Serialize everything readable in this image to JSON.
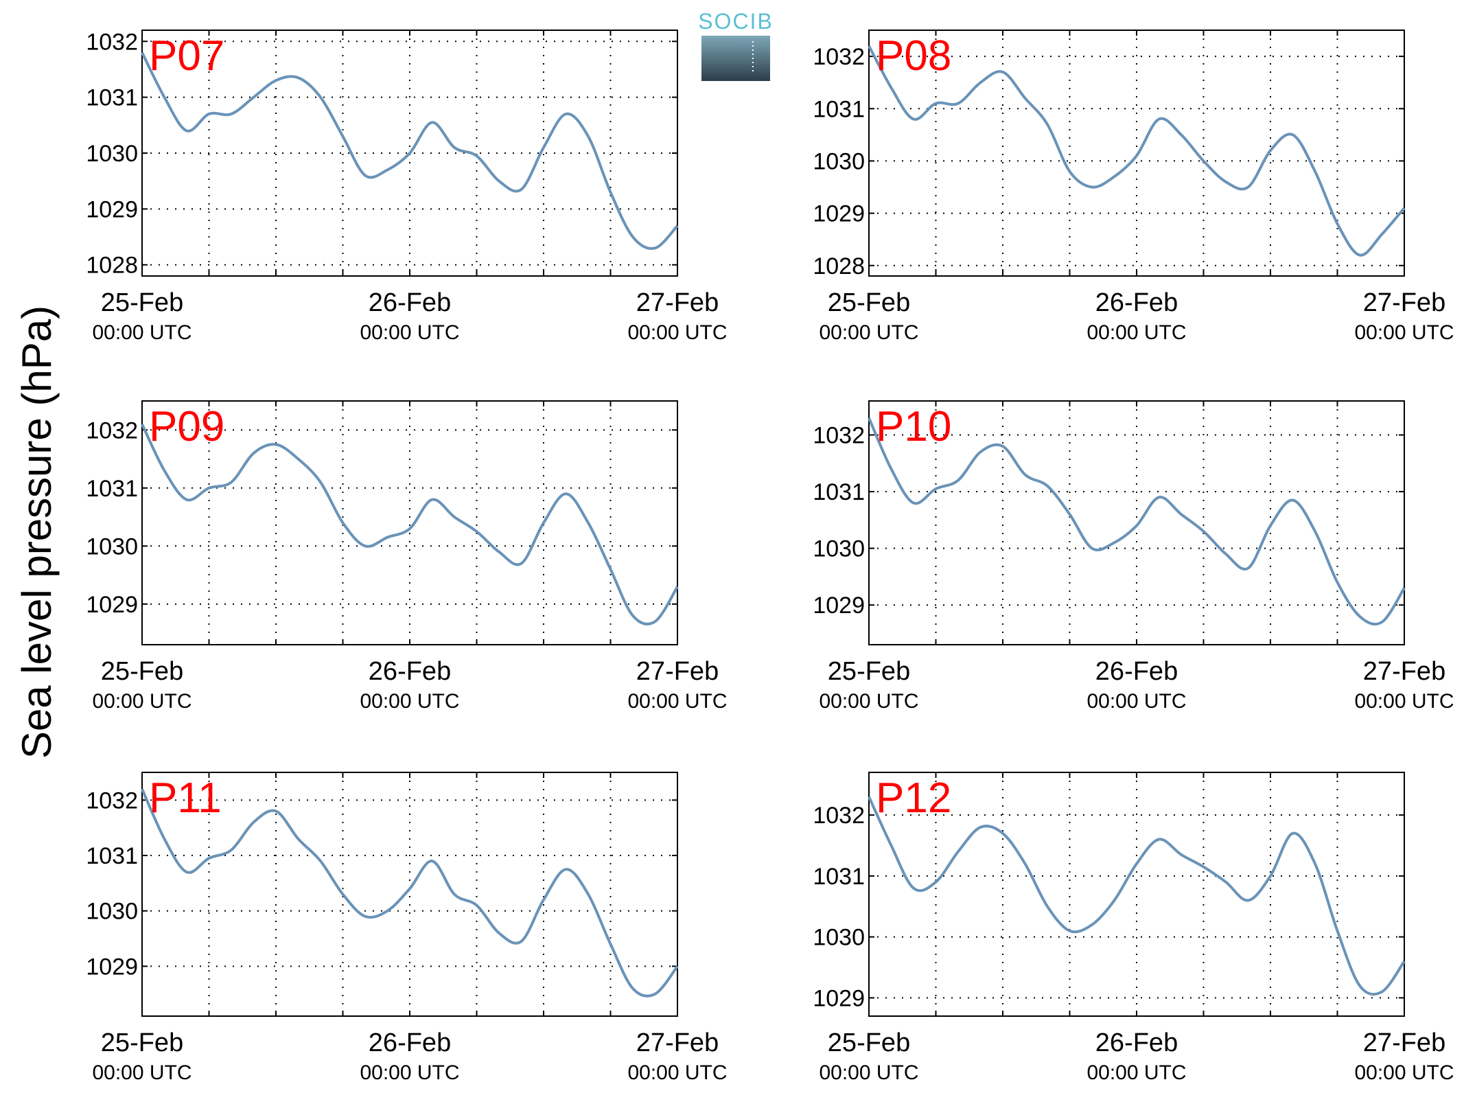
{
  "logo": {
    "text": "SOCIB",
    "text_color": "#5bbfd3",
    "gradient_top": "#7ea7b7",
    "gradient_bottom": "#2c3e4a"
  },
  "colors": {
    "line": "#6a93b8",
    "panel_label": "#ff0000",
    "grid": "#000000"
  },
  "chart_data": [
    {
      "type": "line",
      "label": "P07",
      "ylim": [
        1027.8,
        1032.2
      ],
      "yticks": [
        1028,
        1029,
        1030,
        1031,
        1032
      ],
      "xticks": [
        {
          "date": "25-Feb",
          "time": "00:00 UTC"
        },
        {
          "date": "26-Feb",
          "time": "00:00 UTC"
        },
        {
          "date": "27-Feb",
          "time": "00:00 UTC"
        }
      ],
      "x_hours": [
        0,
        2,
        4,
        6,
        8,
        10,
        12,
        14,
        16,
        18,
        20,
        22,
        24,
        26,
        28,
        30,
        32,
        34,
        36,
        38,
        40,
        42,
        44,
        46,
        48
      ],
      "y": [
        1031.8,
        1031.0,
        1030.4,
        1030.7,
        1030.7,
        1031.0,
        1031.3,
        1031.35,
        1031.0,
        1030.3,
        1029.6,
        1029.7,
        1030.0,
        1030.55,
        1030.1,
        1029.95,
        1029.5,
        1029.35,
        1030.1,
        1030.7,
        1030.3,
        1029.3,
        1028.5,
        1028.3,
        1028.7
      ]
    },
    {
      "type": "line",
      "label": "P08",
      "ylim": [
        1027.8,
        1032.5
      ],
      "yticks": [
        1028,
        1029,
        1030,
        1031,
        1032
      ],
      "xticks": [
        {
          "date": "25-Feb",
          "time": "00:00 UTC"
        },
        {
          "date": "26-Feb",
          "time": "00:00 UTC"
        },
        {
          "date": "27-Feb",
          "time": "00:00 UTC"
        }
      ],
      "x_hours": [
        0,
        2,
        4,
        6,
        8,
        10,
        12,
        14,
        16,
        18,
        20,
        22,
        24,
        26,
        28,
        30,
        32,
        34,
        36,
        38,
        40,
        42,
        44,
        46,
        48
      ],
      "y": [
        1032.2,
        1031.4,
        1030.8,
        1031.1,
        1031.1,
        1031.5,
        1031.7,
        1031.2,
        1030.7,
        1029.8,
        1029.5,
        1029.7,
        1030.1,
        1030.8,
        1030.5,
        1030.0,
        1029.6,
        1029.5,
        1030.2,
        1030.5,
        1029.8,
        1028.8,
        1028.2,
        1028.6,
        1029.1
      ]
    },
    {
      "type": "line",
      "label": "P09",
      "ylim": [
        1028.3,
        1032.5
      ],
      "yticks": [
        1029,
        1030,
        1031,
        1032
      ],
      "xticks": [
        {
          "date": "25-Feb",
          "time": "00:00 UTC"
        },
        {
          "date": "26-Feb",
          "time": "00:00 UTC"
        },
        {
          "date": "27-Feb",
          "time": "00:00 UTC"
        }
      ],
      "x_hours": [
        0,
        2,
        4,
        6,
        8,
        10,
        12,
        14,
        16,
        18,
        20,
        22,
        24,
        26,
        28,
        30,
        32,
        34,
        36,
        38,
        40,
        42,
        44,
        46,
        48
      ],
      "y": [
        1032.1,
        1031.3,
        1030.8,
        1031.0,
        1031.1,
        1031.6,
        1031.75,
        1031.5,
        1031.1,
        1030.4,
        1030.0,
        1030.15,
        1030.3,
        1030.8,
        1030.5,
        1030.25,
        1029.9,
        1029.7,
        1030.4,
        1030.9,
        1030.4,
        1029.6,
        1028.8,
        1028.7,
        1029.3
      ]
    },
    {
      "type": "line",
      "label": "P10",
      "ylim": [
        1028.3,
        1032.6
      ],
      "yticks": [
        1029,
        1030,
        1031,
        1032
      ],
      "xticks": [
        {
          "date": "25-Feb",
          "time": "00:00 UTC"
        },
        {
          "date": "26-Feb",
          "time": "00:00 UTC"
        },
        {
          "date": "27-Feb",
          "time": "00:00 UTC"
        }
      ],
      "x_hours": [
        0,
        2,
        4,
        6,
        8,
        10,
        12,
        14,
        16,
        18,
        20,
        22,
        24,
        26,
        28,
        30,
        32,
        34,
        36,
        38,
        40,
        42,
        44,
        46,
        48
      ],
      "y": [
        1032.3,
        1031.4,
        1030.8,
        1031.05,
        1031.2,
        1031.7,
        1031.8,
        1031.3,
        1031.1,
        1030.6,
        1030.0,
        1030.1,
        1030.4,
        1030.9,
        1030.6,
        1030.3,
        1029.9,
        1029.65,
        1030.4,
        1030.85,
        1030.3,
        1029.4,
        1028.8,
        1028.7,
        1029.3
      ]
    },
    {
      "type": "line",
      "label": "P11",
      "ylim": [
        1028.1,
        1032.5
      ],
      "yticks": [
        1029,
        1030,
        1031,
        1032
      ],
      "xticks": [
        {
          "date": "25-Feb",
          "time": "00:00 UTC"
        },
        {
          "date": "26-Feb",
          "time": "00:00 UTC"
        },
        {
          "date": "27-Feb",
          "time": "00:00 UTC"
        }
      ],
      "x_hours": [
        0,
        2,
        4,
        6,
        8,
        10,
        12,
        14,
        16,
        18,
        20,
        22,
        24,
        26,
        28,
        30,
        32,
        34,
        36,
        38,
        40,
        42,
        44,
        46,
        48
      ],
      "y": [
        1032.2,
        1031.3,
        1030.7,
        1030.95,
        1031.1,
        1031.6,
        1031.8,
        1031.3,
        1030.9,
        1030.3,
        1029.9,
        1030.0,
        1030.4,
        1030.9,
        1030.3,
        1030.1,
        1029.6,
        1029.45,
        1030.2,
        1030.75,
        1030.3,
        1029.4,
        1028.6,
        1028.5,
        1029.0
      ]
    },
    {
      "type": "line",
      "label": "P12",
      "ylim": [
        1028.7,
        1032.7
      ],
      "yticks": [
        1029,
        1030,
        1031,
        1032
      ],
      "xticks": [
        {
          "date": "25-Feb",
          "time": "00:00 UTC"
        },
        {
          "date": "26-Feb",
          "time": "00:00 UTC"
        },
        {
          "date": "27-Feb",
          "time": "00:00 UTC"
        }
      ],
      "x_hours": [
        0,
        2,
        4,
        6,
        8,
        10,
        12,
        14,
        16,
        18,
        20,
        22,
        24,
        26,
        28,
        30,
        32,
        34,
        36,
        38,
        40,
        42,
        44,
        46,
        48
      ],
      "y": [
        1032.3,
        1031.5,
        1030.8,
        1030.9,
        1031.4,
        1031.8,
        1031.7,
        1031.2,
        1030.5,
        1030.1,
        1030.2,
        1030.6,
        1031.2,
        1031.6,
        1031.35,
        1031.15,
        1030.9,
        1030.6,
        1031.0,
        1031.7,
        1031.2,
        1030.1,
        1029.2,
        1029.1,
        1029.6
      ]
    }
  ],
  "shared_ylabel": "Sea level pressure (hPa)"
}
